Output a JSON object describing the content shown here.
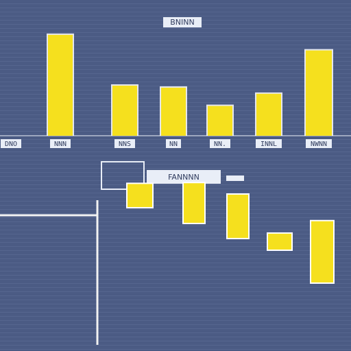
{
  "chart_data": [
    {
      "type": "bar",
      "title": "BNINN",
      "xlabel": "",
      "ylabel": "",
      "categories": [
        "DNO",
        "NNN",
        "NNS",
        "NN",
        "NN.",
        "INNL",
        "NWNN"
      ],
      "values": [
        null,
        150,
        75,
        72,
        45,
        63,
        127
      ],
      "ylim": [
        0,
        160
      ],
      "grid": true,
      "colors": {
        "bar": "#f5e01e",
        "background": "#4b5b84",
        "axis": "#f2f2f2"
      }
    },
    {
      "type": "bar",
      "title": "FANNNN",
      "xlabel": "",
      "ylabel": "",
      "categories": [
        "",
        "",
        "",
        "",
        ""
      ],
      "values": [
        32,
        55,
        60,
        22,
        85
      ],
      "ylim": [
        0,
        100
      ],
      "grid": true,
      "colors": {
        "bar": "#f5e01e",
        "background": "#4b5b84",
        "axis": "#f2f2f2"
      }
    }
  ]
}
